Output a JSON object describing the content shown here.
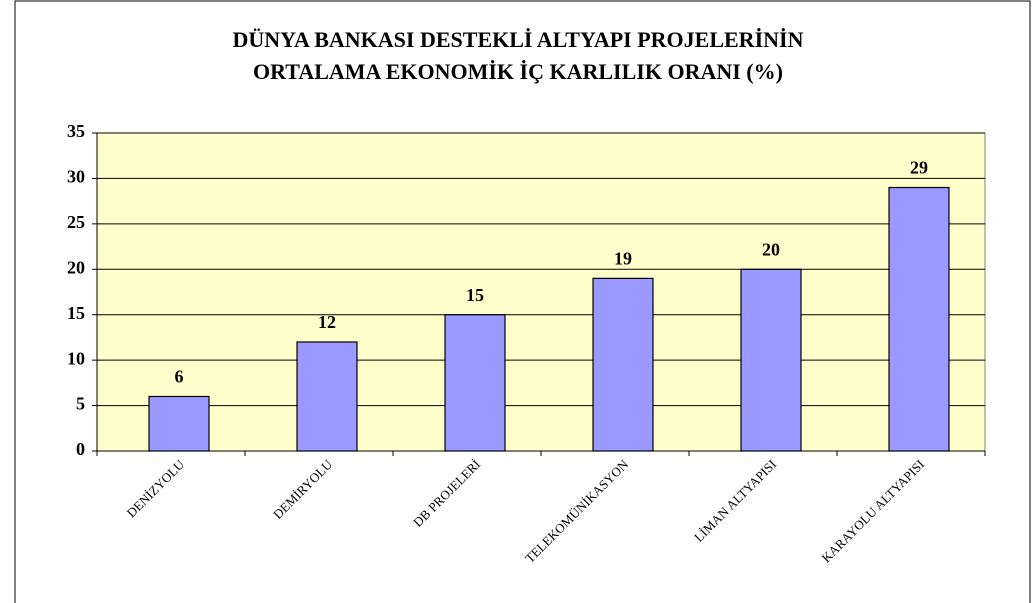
{
  "chart_data": {
    "type": "bar",
    "title": [
      "DÜNYA BANKASI DESTEKLİ ALTYAPI PROJELERİNİN",
      "ORTALAMA EKONOMİK İÇ KARLILIK ORANI (%)"
    ],
    "categories": [
      "DENİZYOLU",
      "DEMİRYOLU",
      "DB PROJELERİ",
      "TELEKOMÜNİKASYON",
      "LİMAN ALTYAPISI",
      "KARAYOLU ALTYAPISI"
    ],
    "values": [
      6,
      12,
      15,
      19,
      20,
      29
    ],
    "color": "#9999ff",
    "plot_background": "#ffffcc",
    "ylim": [
      0,
      35
    ],
    "yticks": [
      0,
      5,
      10,
      15,
      20,
      25,
      30,
      35
    ],
    "grid": true
  }
}
